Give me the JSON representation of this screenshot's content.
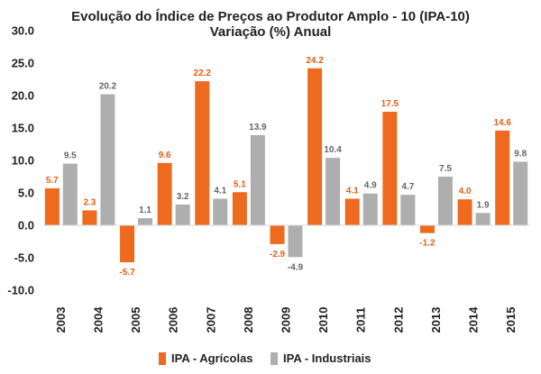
{
  "chart_data": {
    "type": "bar",
    "title": "Evolução do Índice de Preços ao Produtor Amplo - 10 (IPA-10)",
    "subtitle": "Variação (%) Anual",
    "categories": [
      "2003",
      "2004",
      "2005",
      "2006",
      "2007",
      "2008",
      "2009",
      "2010",
      "2011",
      "2012",
      "2013",
      "2014",
      "2015"
    ],
    "series": [
      {
        "name": "IPA - Agrícolas",
        "color": "#ED6A1E",
        "values": [
          5.7,
          2.3,
          -5.7,
          9.6,
          22.2,
          5.1,
          -2.9,
          24.2,
          4.1,
          17.5,
          -1.2,
          4.0,
          14.6
        ],
        "labels": [
          "5.7",
          "2.3",
          "-5.7",
          "9.6",
          "22.2",
          "5.1",
          "-2.9",
          "24.2",
          "4.1",
          "17.5",
          "-1.2",
          "4.0",
          "14.6"
        ]
      },
      {
        "name": "IPA - Industriais",
        "color": "#AEAEAE",
        "values": [
          9.5,
          20.2,
          1.1,
          3.2,
          4.1,
          13.9,
          -4.9,
          10.4,
          4.9,
          4.7,
          7.5,
          1.9,
          9.8
        ],
        "labels": [
          "9.5",
          "20.2",
          "1.1",
          "3.2",
          "4.1",
          "13.9",
          "-4.9",
          "10.4",
          "4.9",
          "4.7",
          "7.5",
          "1.9",
          "9.8"
        ]
      }
    ],
    "ylim": [
      -10,
      30
    ],
    "yticks": [
      "-10.0",
      "-5.0",
      "0.0",
      "5.0",
      "10.0",
      "15.0",
      "20.0",
      "25.0",
      "30.0"
    ],
    "legend_position": "bottom",
    "grid": false
  }
}
